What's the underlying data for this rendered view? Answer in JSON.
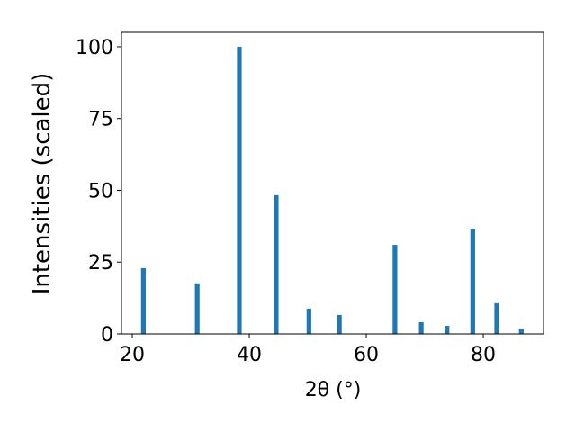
{
  "chart_data": {
    "type": "bar",
    "x_label": "2θ (°)",
    "y_label": "Intensities (scaled)",
    "x": [
      21.9,
      31.1,
      38.3,
      44.6,
      50.2,
      55.4,
      64.9,
      69.4,
      73.8,
      78.2,
      82.3,
      86.5
    ],
    "values": [
      22.9,
      17.6,
      100,
      48.3,
      8.8,
      6.6,
      31,
      4.1,
      2.8,
      36.4,
      10.7,
      1.9
    ],
    "color": "#1f77b4",
    "xlim": [
      18.15,
      90.3
    ],
    "xticks": [
      20,
      40,
      60,
      80
    ],
    "ylim": [
      0,
      105
    ],
    "yticks": [
      0,
      25,
      50,
      75,
      100
    ]
  }
}
